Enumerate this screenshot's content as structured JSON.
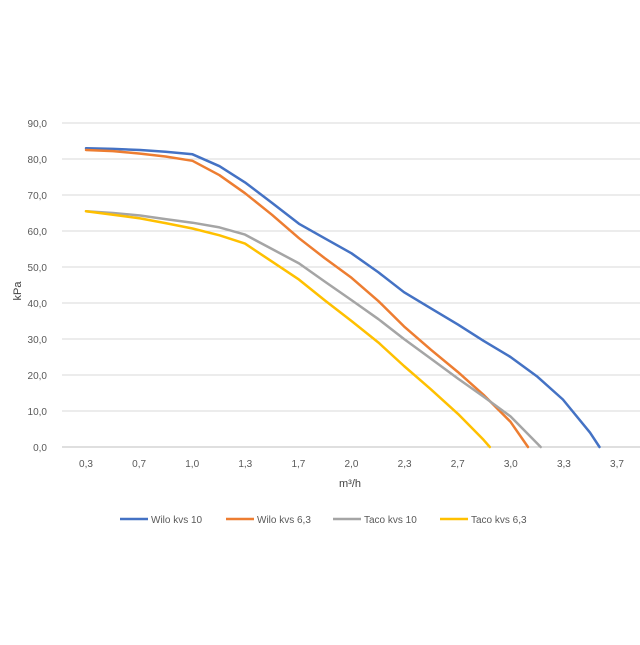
{
  "chart_data": {
    "type": "line",
    "title": "",
    "xlabel": "m³/h",
    "ylabel": "kPa",
    "x_tick_labels": [
      "0,3",
      "0,7",
      "1,0",
      "1,3",
      "1,7",
      "2,0",
      "2,3",
      "2,7",
      "3,0",
      "3,3",
      "3,7"
    ],
    "y_tick_labels": [
      "0,0",
      "10,0",
      "20,0",
      "30,0",
      "40,0",
      "50,0",
      "60,0",
      "70,0",
      "80,0",
      "90,0"
    ],
    "xlim": [
      0.1,
      3.8
    ],
    "ylim": [
      0,
      90
    ],
    "grid": "horizontal",
    "legend_position": "bottom",
    "series": [
      {
        "name": "Wilo kvs 10",
        "color": "#4472C4",
        "x": [
          0.33,
          0.5,
          0.67,
          0.83,
          1.0,
          1.17,
          1.33,
          1.5,
          1.67,
          1.83,
          2.0,
          2.17,
          2.33,
          2.5,
          2.67,
          2.83,
          3.0,
          3.17,
          3.33,
          3.5,
          3.56
        ],
        "y": [
          83,
          82.8,
          82.5,
          82,
          81.3,
          78,
          73.5,
          67.8,
          62,
          58,
          53.8,
          48.5,
          43,
          38.5,
          34,
          29.5,
          25,
          19.5,
          13.2,
          4,
          0
        ]
      },
      {
        "name": "Wilo kvs 6,3",
        "color": "#ED7D31",
        "x": [
          0.33,
          0.5,
          0.67,
          0.83,
          1.0,
          1.17,
          1.33,
          1.5,
          1.67,
          1.83,
          2.0,
          2.17,
          2.33,
          2.5,
          2.67,
          2.83,
          3.0,
          3.11
        ],
        "y": [
          82.5,
          82.2,
          81.5,
          80.7,
          79.5,
          75.5,
          70.5,
          64.5,
          58,
          52.5,
          47,
          40.5,
          33.5,
          27,
          20.8,
          14.5,
          7,
          0
        ]
      },
      {
        "name": "Taco kvs 10",
        "color": "#A5A5A5",
        "x": [
          0.33,
          0.5,
          0.67,
          0.83,
          1.0,
          1.17,
          1.33,
          1.5,
          1.67,
          1.83,
          2.0,
          2.17,
          2.33,
          2.5,
          2.67,
          2.83,
          3.0,
          3.19
        ],
        "y": [
          65.5,
          65,
          64.3,
          63.3,
          62.3,
          61,
          59,
          55,
          51,
          46,
          40.8,
          35.5,
          30,
          24.5,
          19,
          14,
          8.5,
          0
        ]
      },
      {
        "name": "Taco kvs 6,3",
        "color": "#FFC000",
        "x": [
          0.33,
          0.5,
          0.67,
          0.83,
          1.0,
          1.17,
          1.33,
          1.5,
          1.67,
          1.83,
          2.0,
          2.17,
          2.33,
          2.5,
          2.67,
          2.83,
          2.87
        ],
        "y": [
          65.5,
          64.5,
          63.5,
          62.2,
          60.7,
          58.8,
          56.5,
          51.5,
          46.5,
          40.8,
          35,
          29,
          22.5,
          16,
          9.2,
          2,
          0
        ]
      }
    ]
  }
}
